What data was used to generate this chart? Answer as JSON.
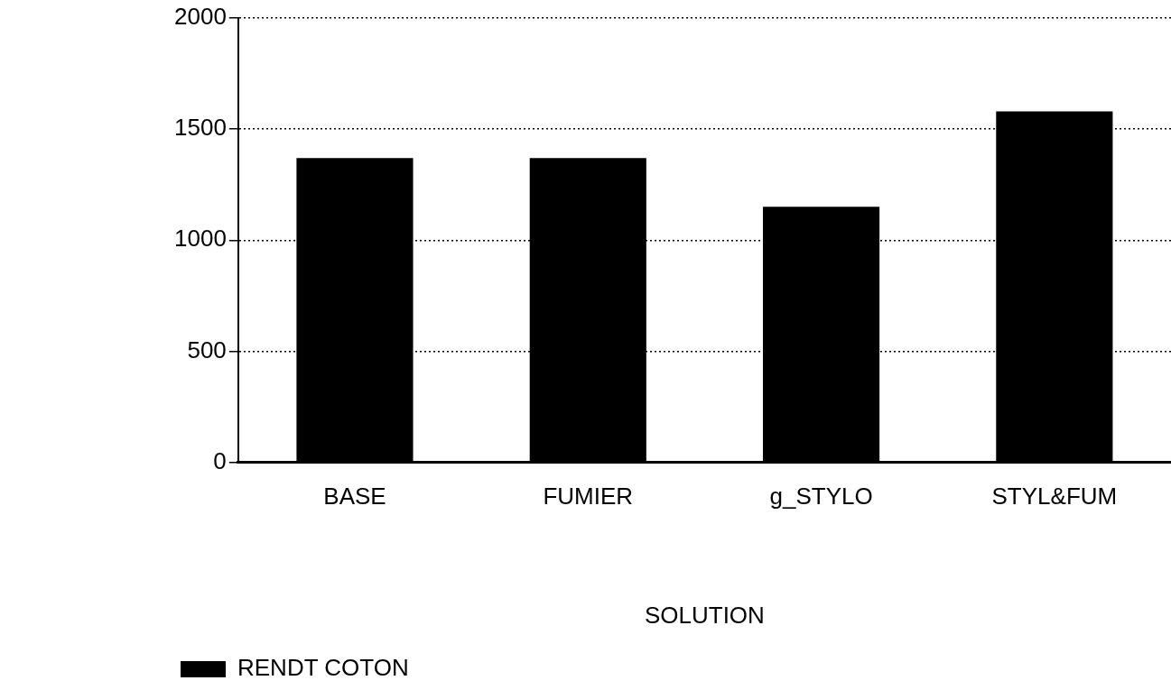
{
  "chart_data": {
    "type": "bar",
    "xlabel": "SOLUTION",
    "categories": [
      "BASE",
      "FUMIER",
      "g_STYLO",
      "STYL&FUM"
    ],
    "series": [
      {
        "name": "RENDT COTON",
        "color": "#000000",
        "values": [
          1370,
          1370,
          1150,
          1580
        ]
      }
    ],
    "ylim": [
      0,
      2000
    ],
    "yticks": [
      0,
      500,
      1000,
      1500,
      2000
    ],
    "grid": "y",
    "legend": "bottom left"
  }
}
